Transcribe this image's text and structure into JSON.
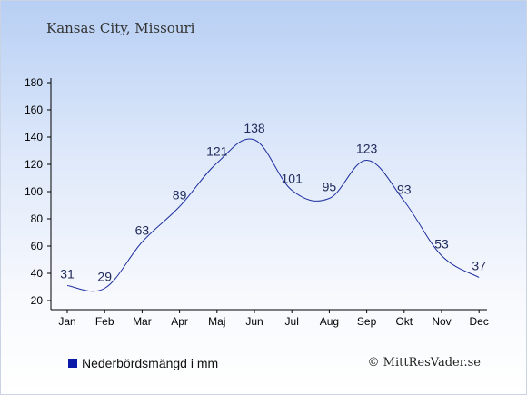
{
  "title": "Kansas City, Missouri",
  "legend": {
    "label": "Nederbördsmängd i mm",
    "color": "#0a1aa8"
  },
  "credit": "© MittResVader.se",
  "chart_data": {
    "type": "line",
    "categories": [
      "Jan",
      "Feb",
      "Mar",
      "Apr",
      "Maj",
      "Jun",
      "Jul",
      "Aug",
      "Sep",
      "Okt",
      "Nov",
      "Dec"
    ],
    "series": [
      {
        "name": "Nederbördsmängd i mm",
        "values": [
          31,
          29,
          63,
          89,
          121,
          138,
          101,
          95,
          123,
          93,
          53,
          37
        ]
      }
    ],
    "yticks": [
      20,
      40,
      60,
      80,
      100,
      120,
      140,
      160,
      180
    ],
    "ylim": [
      20,
      180
    ],
    "line_color": "#1f2fa0",
    "grid": false,
    "data_labels": true
  }
}
